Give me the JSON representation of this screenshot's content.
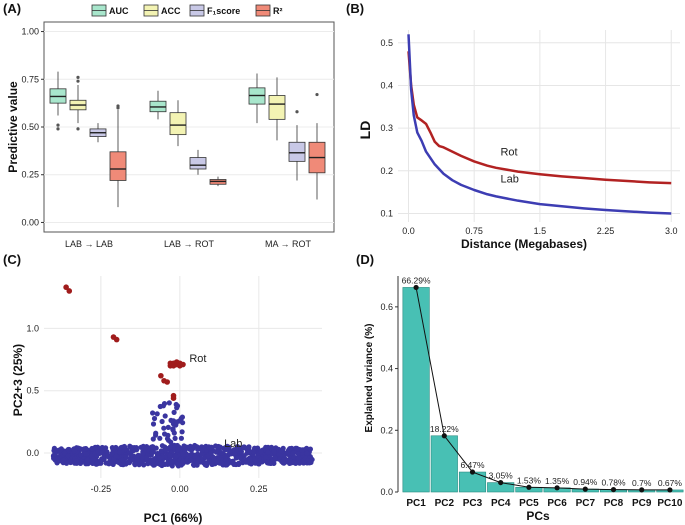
{
  "colors": {
    "auc": "#a8e6cc",
    "acc": "#f3f3b3",
    "f1": "#c8c8e6",
    "r2": "#f08a78",
    "rot_line": "#b22222",
    "lab_line": "#3d3db3",
    "pca_rot": "#a01c1c",
    "pca_lab": "#3a35a0",
    "bar": "#48c0b4"
  },
  "chart_data": [
    {
      "panel": "(A)",
      "type": "box",
      "ylabel": "Predictive value",
      "ylim": [
        -0.05,
        1.05
      ],
      "yticks": [
        "0.00",
        "0.25",
        "0.50",
        "0.75",
        "1.00"
      ],
      "legend": [
        {
          "key": "auc",
          "label": "AUC"
        },
        {
          "key": "acc",
          "label": "ACC"
        },
        {
          "key": "f1",
          "label": "F₁score"
        },
        {
          "key": "r2",
          "label": "R²"
        }
      ],
      "groups": [
        {
          "label": "LAB → LAB",
          "boxes": [
            {
              "key": "auc",
              "min": 0.56,
              "q1": 0.625,
              "median": 0.66,
              "q3": 0.7,
              "max": 0.79,
              "outliers": [
                0.51,
                0.49
              ]
            },
            {
              "key": "acc",
              "min": 0.52,
              "q1": 0.59,
              "median": 0.615,
              "q3": 0.64,
              "max": 0.72,
              "outliers": [
                0.76,
                0.74,
                0.49
              ]
            },
            {
              "key": "f1",
              "min": 0.42,
              "q1": 0.45,
              "median": 0.47,
              "q3": 0.49,
              "max": 0.52,
              "outliers": []
            },
            {
              "key": "r2",
              "min": 0.08,
              "q1": 0.22,
              "median": 0.28,
              "q3": 0.37,
              "max": 0.59,
              "outliers": [
                0.61,
                0.6
              ]
            }
          ]
        },
        {
          "label": "LAB → ROT",
          "boxes": [
            {
              "key": "auc",
              "min": 0.54,
              "q1": 0.58,
              "median": 0.605,
              "q3": 0.635,
              "max": 0.69,
              "outliers": []
            },
            {
              "key": "acc",
              "min": 0.4,
              "q1": 0.46,
              "median": 0.51,
              "q3": 0.575,
              "max": 0.64,
              "outliers": []
            },
            {
              "key": "f1",
              "min": 0.25,
              "q1": 0.28,
              "median": 0.3,
              "q3": 0.34,
              "max": 0.38,
              "outliers": []
            },
            {
              "key": "r2",
              "min": 0.19,
              "q1": 0.2,
              "median": 0.215,
              "q3": 0.225,
              "max": 0.24,
              "outliers": []
            }
          ]
        },
        {
          "label": "MA → ROT",
          "boxes": [
            {
              "key": "auc",
              "min": 0.52,
              "q1": 0.62,
              "median": 0.665,
              "q3": 0.705,
              "max": 0.78,
              "outliers": []
            },
            {
              "key": "acc",
              "min": 0.43,
              "q1": 0.54,
              "median": 0.62,
              "q3": 0.665,
              "max": 0.76,
              "outliers": []
            },
            {
              "key": "f1",
              "min": 0.22,
              "q1": 0.32,
              "median": 0.365,
              "q3": 0.42,
              "max": 0.51,
              "outliers": [
                0.58
              ]
            },
            {
              "key": "r2",
              "min": 0.12,
              "q1": 0.26,
              "median": 0.34,
              "q3": 0.42,
              "max": 0.52,
              "outliers": [
                0.67
              ]
            }
          ]
        }
      ]
    },
    {
      "panel": "(B)",
      "type": "line",
      "xlabel": "Distance (Megabases)",
      "ylabel": "LD",
      "xlim": [
        -0.12,
        3.1
      ],
      "ylim": [
        0.08,
        0.53
      ],
      "xticks": [
        {
          "v": 0,
          "t": "0.0"
        },
        {
          "v": 0.75,
          "t": "0.75"
        },
        {
          "v": 1.5,
          "t": "1.5"
        },
        {
          "v": 2.25,
          "t": "2.25"
        },
        {
          "v": 3.0,
          "t": "3.0"
        }
      ],
      "yticks": [
        {
          "v": 0.1,
          "t": "0.1"
        },
        {
          "v": 0.2,
          "t": "0.2"
        },
        {
          "v": 0.3,
          "t": "0.3"
        },
        {
          "v": 0.4,
          "t": "0.4"
        },
        {
          "v": 0.5,
          "t": "0.5"
        }
      ],
      "series": [
        {
          "name": "Rot",
          "x": [
            0.0,
            0.03,
            0.06,
            0.1,
            0.15,
            0.2,
            0.25,
            0.3,
            0.35,
            0.4,
            0.5,
            0.6,
            0.75,
            0.9,
            1.0,
            1.25,
            1.5,
            1.75,
            2.0,
            2.25,
            2.5,
            2.75,
            3.0
          ],
          "y": [
            0.48,
            0.4,
            0.355,
            0.325,
            0.318,
            0.31,
            0.29,
            0.268,
            0.258,
            0.255,
            0.245,
            0.235,
            0.222,
            0.212,
            0.207,
            0.198,
            0.192,
            0.187,
            0.183,
            0.179,
            0.176,
            0.173,
            0.171
          ]
        },
        {
          "name": "Lab",
          "x": [
            0.0,
            0.03,
            0.06,
            0.1,
            0.15,
            0.2,
            0.3,
            0.4,
            0.5,
            0.6,
            0.75,
            0.9,
            1.0,
            1.25,
            1.5,
            1.75,
            2.0,
            2.25,
            2.5,
            2.75,
            3.0
          ],
          "y": [
            0.52,
            0.39,
            0.33,
            0.29,
            0.27,
            0.245,
            0.215,
            0.193,
            0.178,
            0.167,
            0.155,
            0.145,
            0.14,
            0.13,
            0.122,
            0.117,
            0.112,
            0.108,
            0.105,
            0.102,
            0.1
          ]
        }
      ],
      "annotations": [
        {
          "text": "Rot",
          "x": 1.05,
          "y": 0.236
        },
        {
          "text": "Lab",
          "x": 1.05,
          "y": 0.172
        }
      ]
    },
    {
      "panel": "(C)",
      "type": "scatter",
      "xlabel": "PC1 (66%)",
      "ylabel": "PC2+3 (25%)",
      "xlim": [
        -0.43,
        0.45
      ],
      "ylim": [
        -0.2,
        1.42
      ],
      "xticks": [
        {
          "v": -0.25,
          "t": "-0.25"
        },
        {
          "v": 0.0,
          "t": "0.00"
        },
        {
          "v": 0.25,
          "t": "0.25"
        }
      ],
      "yticks": [
        {
          "v": 0.0,
          "t": "0.0"
        },
        {
          "v": 0.5,
          "t": "0.5"
        },
        {
          "v": 1.0,
          "t": "1.0"
        }
      ],
      "series": [
        {
          "name": "Rot",
          "points": [
            [
              -0.36,
              1.33
            ],
            [
              -0.35,
              1.3
            ],
            [
              -0.21,
              0.93
            ],
            [
              -0.2,
              0.91
            ],
            [
              -0.06,
              0.62
            ],
            [
              -0.05,
              0.58
            ],
            [
              -0.04,
              0.57
            ],
            [
              -0.02,
              0.46
            ],
            [
              -0.02,
              0.44
            ],
            [
              -0.03,
              0.72
            ],
            [
              -0.02,
              0.72
            ],
            [
              -0.01,
              0.71
            ],
            [
              0.0,
              0.72
            ],
            [
              -0.02,
              0.7
            ],
            [
              0.0,
              0.7
            ],
            [
              -0.01,
              0.73
            ],
            [
              0.01,
              0.71
            ],
            [
              -0.03,
              0.7
            ]
          ]
        },
        {
          "name": "Lab",
          "cloud": true
        }
      ],
      "annotations": [
        {
          "text": "Rot",
          "x": 0.03,
          "y": 0.73
        },
        {
          "text": "Lab",
          "x": 0.14,
          "y": 0.05
        }
      ]
    },
    {
      "panel": "(D)",
      "type": "bar",
      "xlabel": "PCs",
      "ylabel": "Explained variance (%)",
      "ylim": [
        0,
        0.7
      ],
      "yticks": [
        {
          "v": 0,
          "t": "0.0"
        },
        {
          "v": 0.2,
          "t": "0.2"
        },
        {
          "v": 0.4,
          "t": "0.4"
        },
        {
          "v": 0.6,
          "t": "0.6"
        }
      ],
      "categories": [
        "PC1",
        "PC2",
        "PC3",
        "PC4",
        "PC5",
        "PC6",
        "PC7",
        "PC8",
        "PC9",
        "PC10"
      ],
      "values": [
        0.6629,
        0.1822,
        0.0647,
        0.0305,
        0.0153,
        0.0135,
        0.0094,
        0.0078,
        0.007,
        0.0067
      ],
      "labels": [
        "66.29%",
        "18.22%",
        "6.47%",
        "3.05%",
        "1.53%",
        "1.35%",
        "0.94%",
        "0.78%",
        "0.7%",
        "0.67%"
      ]
    }
  ]
}
